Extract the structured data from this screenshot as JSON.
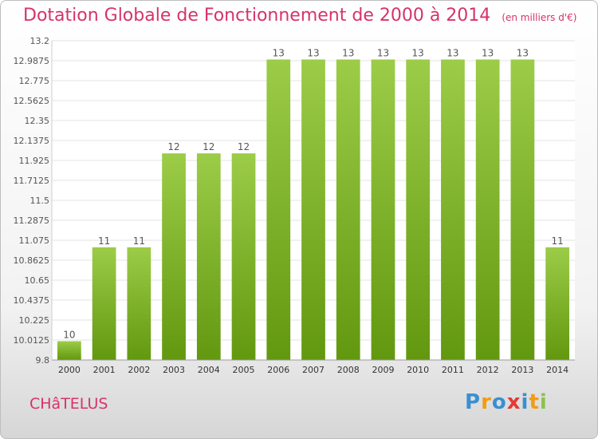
{
  "header": {
    "title": "Dotation Globale de Fonctionnement de 2000 à 2014",
    "unit": "(en milliers d'€)"
  },
  "footer": {
    "commune": "CHâTELUS",
    "brand": "Proxiti"
  },
  "colors": {
    "title": "#d6336c",
    "bar_top": "#9ccc48",
    "bar_bottom": "#62980f",
    "grid": "#e3e3e3",
    "plot_bg": "#ffffff",
    "brand": [
      "#3a8fd0",
      "#f39c12",
      "#3a8fd0",
      "#e53935",
      "#3a8fd0",
      "#f39c12",
      "#8bc34a"
    ]
  },
  "chart_data": {
    "type": "bar",
    "title": "Dotation Globale de Fonctionnement de 2000 à 2014",
    "xlabel": "",
    "ylabel": "",
    "categories": [
      "2000",
      "2001",
      "2002",
      "2003",
      "2004",
      "2005",
      "2006",
      "2007",
      "2008",
      "2009",
      "2010",
      "2011",
      "2012",
      "2013",
      "2014"
    ],
    "values": [
      10,
      11,
      11,
      12,
      12,
      12,
      13,
      13,
      13,
      13,
      13,
      13,
      13,
      13,
      11
    ],
    "ylim": [
      9.8,
      13.2
    ],
    "y_ticks": [
      "13.2",
      "12.9875",
      "12.775",
      "12.5625",
      "12.35",
      "12.1375",
      "11.925",
      "11.7125",
      "11.5",
      "11.2875",
      "11.075",
      "10.8625",
      "10.65",
      "10.4375",
      "10.225",
      "10.0125",
      "9.8"
    ],
    "grid": true,
    "legend": "none"
  }
}
